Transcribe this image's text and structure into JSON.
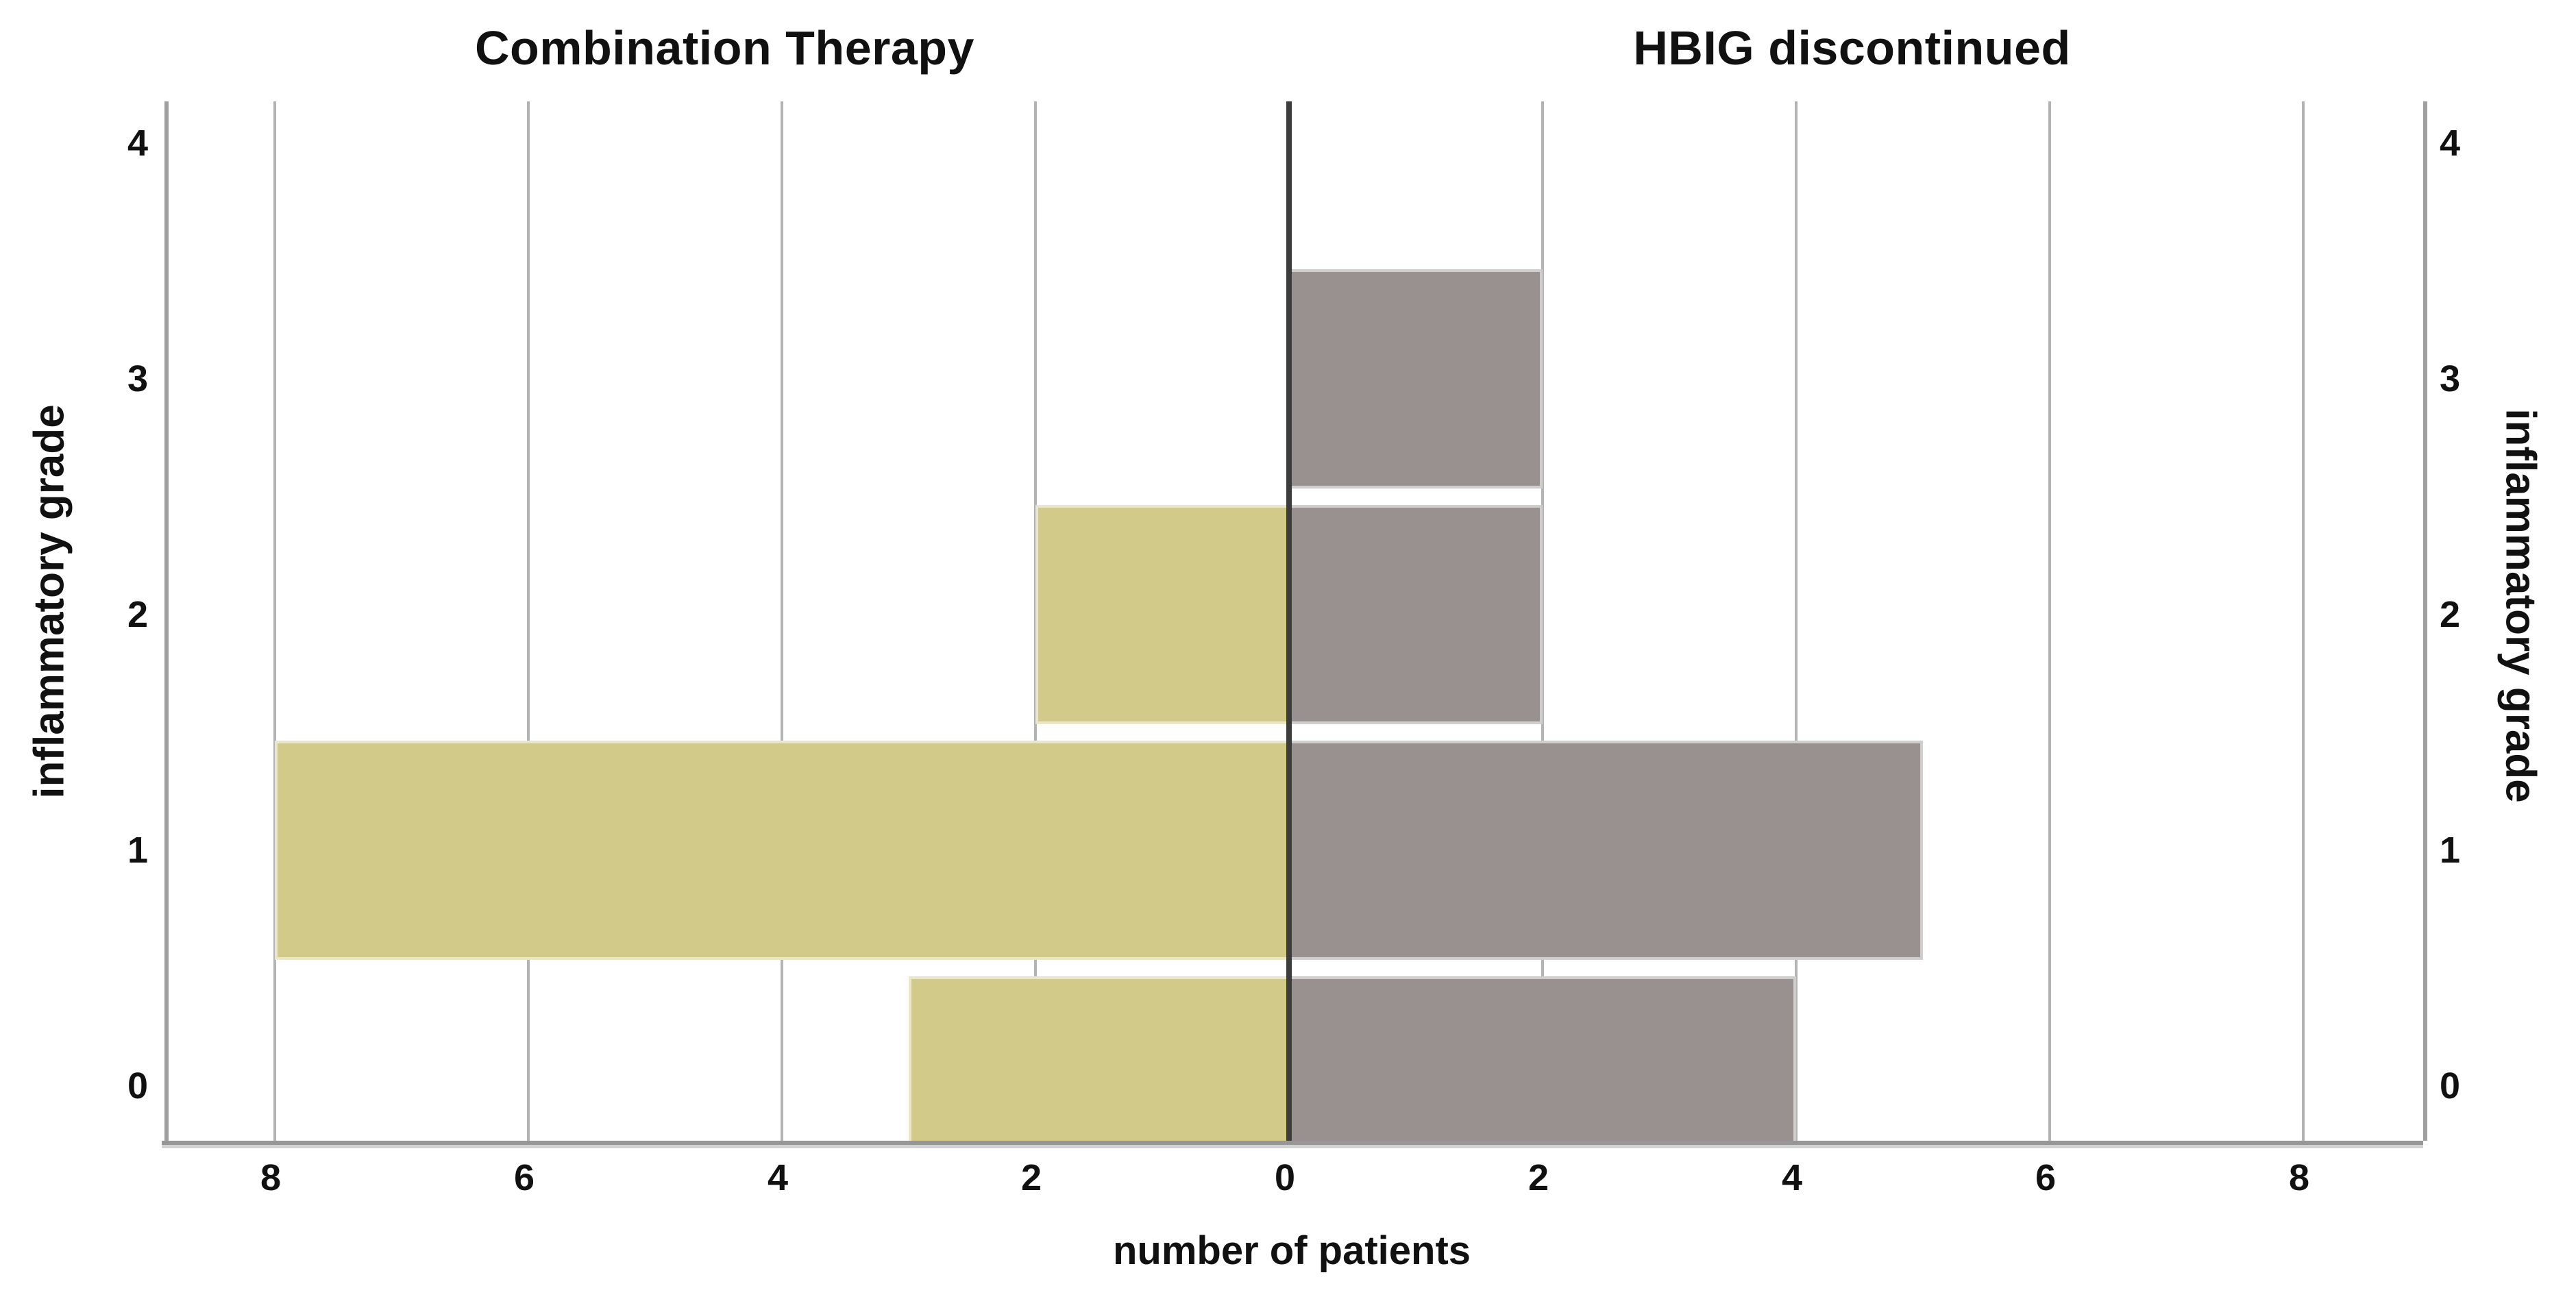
{
  "chart_data": {
    "type": "bar",
    "variant": "population-pyramid",
    "panels": {
      "left_title": "Combination Therapy",
      "right_title": "HBIG discontinued"
    },
    "xlabel": "number of patients",
    "ylabel_left": "inflammatory grade",
    "ylabel_right": "inflammatory grade",
    "categories": [
      "0",
      "1",
      "2",
      "3",
      "4"
    ],
    "series": [
      {
        "name": "Combination Therapy",
        "side": "left",
        "color": "#d1ca88",
        "values": [
          3,
          8,
          2,
          0,
          0
        ]
      },
      {
        "name": "HBIG discontinued",
        "side": "right",
        "color": "#989190",
        "values": [
          4,
          5,
          2,
          2,
          0
        ]
      }
    ],
    "x_ticks": [
      {
        "pos": -8,
        "label": "8"
      },
      {
        "pos": -6,
        "label": "6"
      },
      {
        "pos": -4,
        "label": "4"
      },
      {
        "pos": -2,
        "label": "2"
      },
      {
        "pos": 0,
        "label": "0"
      },
      {
        "pos": 2,
        "label": "2"
      },
      {
        "pos": 4,
        "label": "4"
      },
      {
        "pos": 6,
        "label": "6"
      },
      {
        "pos": 8,
        "label": "8"
      }
    ],
    "y_ticks": [
      {
        "pos": 0,
        "label": "0"
      },
      {
        "pos": 1,
        "label": "1"
      },
      {
        "pos": 2,
        "label": "2"
      },
      {
        "pos": 3,
        "label": "3"
      },
      {
        "pos": 4,
        "label": "4"
      }
    ],
    "xlim_units_per_side": 8.9,
    "ylim": [
      -0.3,
      4.25
    ],
    "grid": true,
    "legend": "none",
    "colors": {
      "left_bar": "#d1ca88",
      "right_bar": "#989190",
      "grid_line": "#b3b3b3",
      "axis_frame": "#9f9f9f",
      "baseline": "#969696",
      "baseline_shadow": "#d2d2d2",
      "center_line": "#3c3c3c",
      "text": "#111111",
      "background": "#ffffff"
    }
  }
}
